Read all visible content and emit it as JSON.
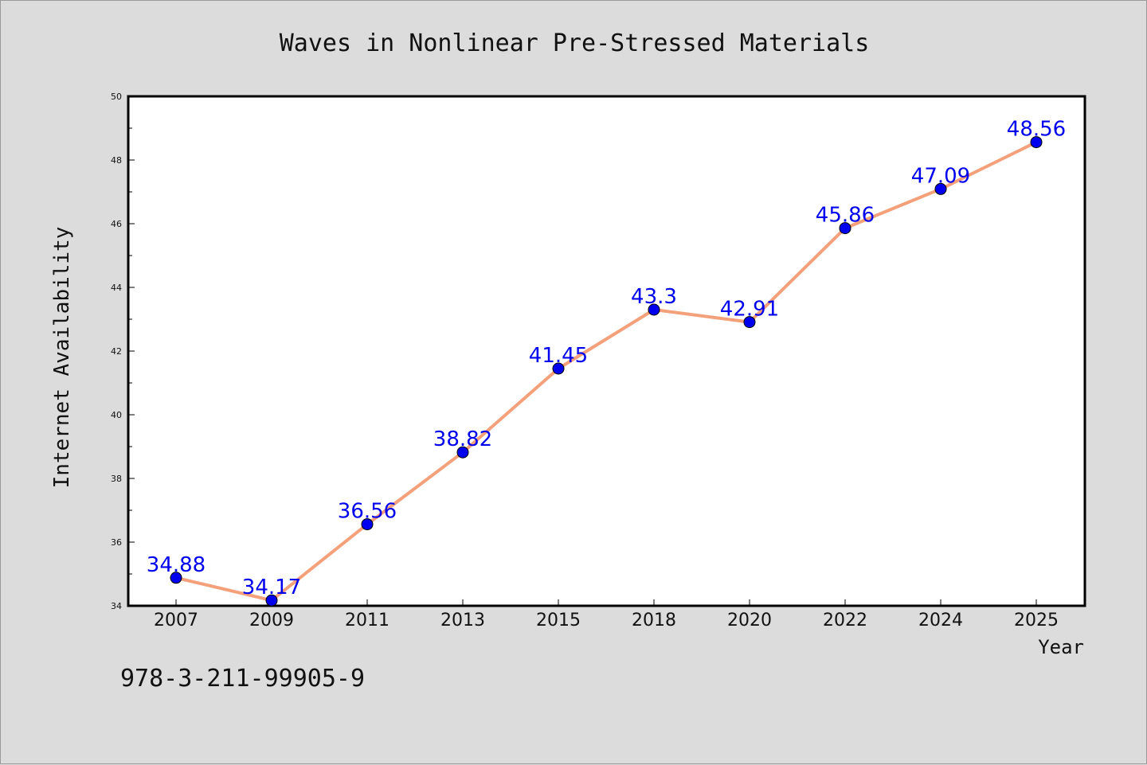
{
  "chart_data": {
    "type": "line",
    "title": "Waves in Nonlinear Pre-Stressed Materials",
    "xlabel": "Year",
    "ylabel": "Internet Availability",
    "categories": [
      "2007",
      "2009",
      "2011",
      "2013",
      "2015",
      "2018",
      "2020",
      "2022",
      "2024",
      "2025"
    ],
    "series": [
      {
        "values": [
          34.88,
          34.17,
          36.56,
          38.82,
          41.45,
          43.3,
          42.91,
          45.86,
          47.09,
          48.56
        ],
        "data_labels": [
          "34.88",
          "34.17",
          "36.56",
          "38.82",
          "41.45",
          "43.3",
          "42.91",
          "45.86",
          "47.09",
          "48.56"
        ],
        "line_color": "#f4a07a",
        "marker_color": "#0000ee"
      }
    ],
    "ylim": [
      34,
      50
    ],
    "yticks": [
      "34",
      "36",
      "38",
      "40",
      "42",
      "44",
      "46",
      "48",
      "50"
    ],
    "grid": false,
    "legend": "none"
  },
  "annotation_text": "978-3-211-99905-9",
  "colors": {
    "background": "#dcdcdc",
    "plot_background": "#ffffff",
    "label_color": "#0000ee"
  }
}
